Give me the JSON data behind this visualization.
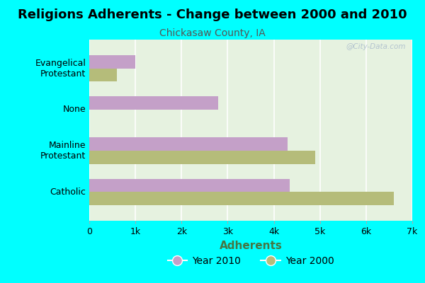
{
  "title": "Religions Adherents - Change between 2000 and 2010",
  "subtitle": "Chickasaw County, IA",
  "xlabel": "Adherents",
  "categories": [
    "Catholic",
    "Mainline\nProtestant",
    "None",
    "Evangelical\nProtestant"
  ],
  "year2010_values": [
    4350,
    4300,
    2800,
    1000
  ],
  "year2000_values": [
    6600,
    4900,
    0,
    600
  ],
  "color_2010": "#c4a0c8",
  "color_2000": "#b5bc7a",
  "bg_color": "#00ffff",
  "plot_bg_color_topleft": "#e8f5e8",
  "plot_bg_color_bottomright": "#f8fff8",
  "xlim": [
    0,
    7000
  ],
  "xticks": [
    0,
    1000,
    2000,
    3000,
    4000,
    5000,
    6000,
    7000
  ],
  "xticklabels": [
    "0",
    "1k",
    "2k",
    "3k",
    "4k",
    "5k",
    "6k",
    "7k"
  ],
  "title_fontsize": 13,
  "subtitle_fontsize": 10,
  "xlabel_fontsize": 11,
  "watermark": "@City-Data.com"
}
